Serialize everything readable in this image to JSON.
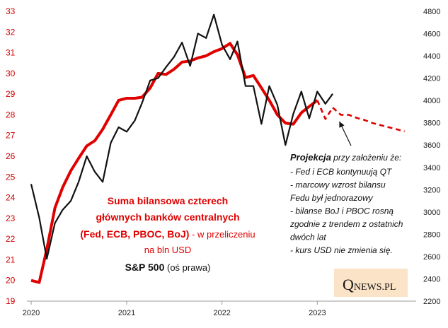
{
  "chart_data": {
    "type": "line",
    "x_ticks": [
      "2020",
      "2021",
      "2022",
      "2023"
    ],
    "y_left_ticks": [
      "19",
      "20",
      "21",
      "22",
      "23",
      "24",
      "25",
      "26",
      "27",
      "28",
      "29",
      "30",
      "31",
      "32",
      "33"
    ],
    "y_left_lim": [
      19,
      33
    ],
    "y_right_ticks": [
      "2200",
      "2400",
      "2600",
      "2800",
      "3000",
      "3200",
      "3400",
      "3600",
      "3800",
      "4000",
      "4200",
      "4400",
      "4600",
      "4800"
    ],
    "y_right_lim": [
      2200,
      4800
    ],
    "grid": false,
    "series": [
      {
        "axis": "left",
        "color": "#e00000",
        "points": [
          [
            "2020-01-01",
            20.0
          ],
          [
            "2020-02-01",
            19.9
          ],
          [
            "2020-03-01",
            21.5
          ],
          [
            "2020-04-01",
            23.5
          ],
          [
            "2020-05-01",
            24.5
          ],
          [
            "2020-06-01",
            25.3
          ],
          [
            "2020-07-01",
            25.9
          ],
          [
            "2020-08-01",
            26.5
          ],
          [
            "2020-09-01",
            26.75
          ],
          [
            "2020-10-01",
            27.3
          ],
          [
            "2020-11-01",
            28.0
          ],
          [
            "2020-12-01",
            28.7
          ],
          [
            "2021-01-01",
            28.8
          ],
          [
            "2021-02-01",
            28.8
          ],
          [
            "2021-03-01",
            28.85
          ],
          [
            "2021-04-01",
            29.3
          ],
          [
            "2021-05-01",
            30.0
          ],
          [
            "2021-06-01",
            29.95
          ],
          [
            "2021-07-01",
            30.2
          ],
          [
            "2021-08-01",
            30.55
          ],
          [
            "2021-09-01",
            30.6
          ],
          [
            "2021-10-01",
            30.75
          ],
          [
            "2021-11-01",
            30.85
          ],
          [
            "2021-12-01",
            31.05
          ],
          [
            "2022-01-01",
            31.2
          ],
          [
            "2022-02-01",
            31.45
          ],
          [
            "2022-03-01",
            30.9
          ],
          [
            "2022-04-01",
            29.8
          ],
          [
            "2022-05-01",
            29.9
          ],
          [
            "2022-06-01",
            29.3
          ],
          [
            "2022-07-01",
            28.7
          ],
          [
            "2022-08-01",
            28.0
          ],
          [
            "2022-09-01",
            27.6
          ],
          [
            "2022-10-01",
            27.55
          ],
          [
            "2022-11-01",
            28.1
          ],
          [
            "2022-12-01",
            28.4
          ],
          [
            "2023-01-01",
            28.7
          ]
        ]
      },
      {
        "axis": "right",
        "color": "#111111",
        "points": [
          [
            "2020-01-01",
            3250
          ],
          [
            "2020-02-01",
            2950
          ],
          [
            "2020-03-01",
            2580
          ],
          [
            "2020-04-01",
            2900
          ],
          [
            "2020-05-01",
            3020
          ],
          [
            "2020-06-01",
            3100
          ],
          [
            "2020-07-01",
            3270
          ],
          [
            "2020-08-01",
            3500
          ],
          [
            "2020-09-01",
            3360
          ],
          [
            "2020-10-01",
            3270
          ],
          [
            "2020-11-01",
            3620
          ],
          [
            "2020-12-01",
            3760
          ],
          [
            "2021-01-01",
            3720
          ],
          [
            "2021-02-01",
            3820
          ],
          [
            "2021-03-01",
            3980
          ],
          [
            "2021-04-01",
            4180
          ],
          [
            "2021-05-01",
            4200
          ],
          [
            "2021-06-01",
            4300
          ],
          [
            "2021-07-01",
            4390
          ],
          [
            "2021-08-01",
            4520
          ],
          [
            "2021-09-01",
            4310
          ],
          [
            "2021-10-01",
            4600
          ],
          [
            "2021-11-01",
            4560
          ],
          [
            "2021-12-01",
            4770
          ],
          [
            "2022-01-01",
            4500
          ],
          [
            "2022-02-01",
            4370
          ],
          [
            "2022-03-01",
            4530
          ],
          [
            "2022-04-01",
            4130
          ],
          [
            "2022-05-01",
            4130
          ],
          [
            "2022-06-01",
            3790
          ],
          [
            "2022-07-01",
            4130
          ],
          [
            "2022-08-01",
            3960
          ],
          [
            "2022-09-01",
            3600
          ],
          [
            "2022-10-01",
            3880
          ],
          [
            "2022-11-01",
            4080
          ],
          [
            "2022-12-01",
            3840
          ],
          [
            "2023-01-01",
            4080
          ],
          [
            "2023-02-01",
            3970
          ],
          [
            "2023-03-01",
            4060
          ]
        ]
      },
      {
        "axis": "left",
        "color": "#e00000",
        "dashed": true,
        "points": [
          [
            "2023-01-01",
            28.7
          ],
          [
            "2023-02-01",
            27.8
          ],
          [
            "2023-03-01",
            28.35
          ],
          [
            "2023-04-01",
            28.0
          ],
          [
            "2023-05-01",
            28.0
          ],
          [
            "2023-06-01",
            27.85
          ],
          [
            "2023-07-01",
            27.75
          ],
          [
            "2023-08-01",
            27.6
          ],
          [
            "2023-09-01",
            27.5
          ],
          [
            "2023-10-01",
            27.4
          ],
          [
            "2023-11-01",
            27.3
          ],
          [
            "2023-12-01",
            27.2
          ]
        ]
      }
    ],
    "legend": {
      "balance_line1": "Suma bilansowa czterech",
      "balance_line2": "głównych banków centralnych",
      "balance_line3_bold": "(Fed, ECB, PBOC, BoJ)",
      "balance_line3_rest": " - w przeliczeniu",
      "balance_line4": "na bln USD",
      "sp_bold": "S&P 500",
      "sp_rest": " (oś prawa)"
    },
    "annotation": {
      "title": "Projekcja",
      "title_rest": " przy założeniu że:",
      "lines": [
        "- Fed i ECB kontynuują QT",
        "- marcowy wzrost bilansu",
        "Fedu był jednorazowy",
        "- bilanse BoJ i PBOC rosną",
        "zgodnie z trendem z ostatnich",
        "dwóch lat",
        "- kurs USD nie zmienia się."
      ],
      "arrow_target": [
        "2023-04-01",
        27.95
      ]
    },
    "logo": {
      "q": "Q",
      "rest": "NEWS.PL",
      "bg": "#fbe3c8"
    }
  }
}
